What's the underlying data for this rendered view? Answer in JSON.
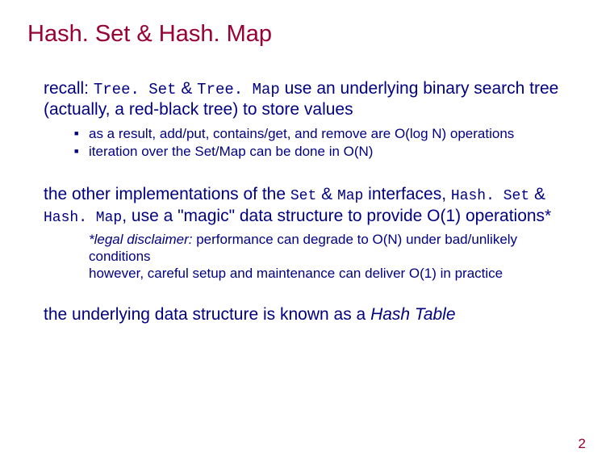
{
  "colors": {
    "title": "#990033",
    "body": "#000080",
    "pagenum": "#990033",
    "background": "#ffffff"
  },
  "title": "Hash. Set & Hash. Map",
  "para1": {
    "prefix": "recall: ",
    "code1": "Tree. Set",
    "mid1": " & ",
    "code2": "Tree. Map",
    "rest": " use an underlying binary search tree (actually, a red-black tree) to store values"
  },
  "bullets1": [
    "as a result, add/put, contains/get, and remove are O(log N) operations",
    "iteration over the Set/Map can be done in O(N)"
  ],
  "para2": {
    "prefix": "the other implementations of the ",
    "code1": "Set",
    "mid1": " & ",
    "code2": "Map",
    "mid2": " interfaces, ",
    "code3": "Hash. Set",
    "mid3": " & ",
    "code4": "Hash. Map",
    "rest": ", use a \"magic\" data structure to provide O(1) operations*"
  },
  "disclaimer": {
    "lead_italic": "*legal disclaimer:",
    "line1_rest": " performance can degrade to O(N) under bad/unlikely conditions",
    "line2": "however, careful setup and maintenance can deliver O(1) in practice"
  },
  "para3": {
    "prefix": "the underlying data structure is known as a ",
    "italic": "Hash Table"
  },
  "page_number": "2"
}
